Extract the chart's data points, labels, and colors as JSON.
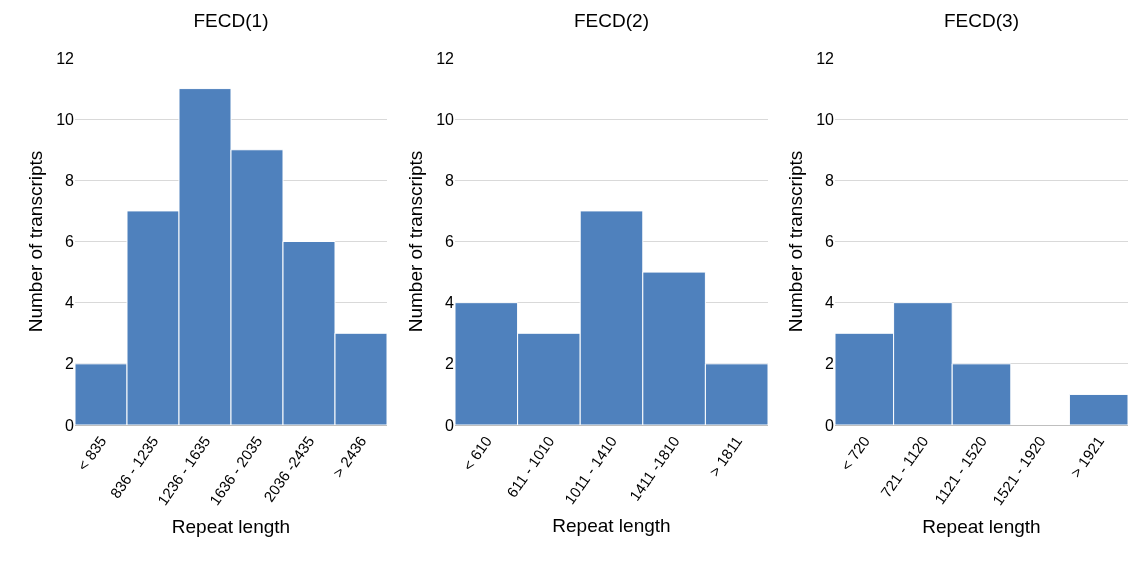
{
  "chart_data": [
    {
      "type": "bar",
      "title": "FECD(1)",
      "xlabel": "Repeat length",
      "ylabel": "Number of transcripts",
      "categories": [
        "< 835",
        "836 - 1235",
        "1236 - 1635",
        "1636 - 2035",
        "2036 -2435",
        "> 2436"
      ],
      "values": [
        2,
        7,
        11,
        9,
        6,
        3
      ],
      "color": "#4f81bd",
      "ylim": [
        0,
        12
      ],
      "yticks": [
        0,
        2,
        4,
        6,
        8,
        10,
        12
      ],
      "grid": "y"
    },
    {
      "type": "bar",
      "title": "FECD(2)",
      "xlabel": "Repeat length",
      "ylabel": "Number of transcripts",
      "categories": [
        "< 610",
        "611 - 1010",
        "1011 - 1410",
        "1411 -1810",
        "> 1811"
      ],
      "values": [
        4,
        3,
        7,
        5,
        2
      ],
      "color": "#4f81bd",
      "ylim": [
        0,
        12
      ],
      "yticks": [
        0,
        2,
        4,
        6,
        8,
        10,
        12
      ],
      "grid": "y"
    },
    {
      "type": "bar",
      "title": "FECD(3)",
      "xlabel": "Repeat length",
      "ylabel": "Number of transcripts",
      "categories": [
        "< 720",
        "721 - 1120",
        "1121 - 1520",
        "1521 - 1920",
        "> 1921"
      ],
      "values": [
        3,
        4,
        2,
        0,
        1
      ],
      "color": "#4f81bd",
      "ylim": [
        0,
        12
      ],
      "yticks": [
        0,
        2,
        4,
        6,
        8,
        10,
        12
      ],
      "grid": "y"
    }
  ]
}
